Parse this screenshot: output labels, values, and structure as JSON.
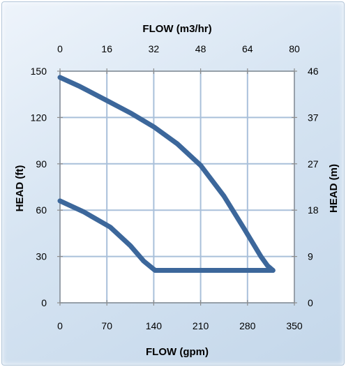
{
  "chart_data": {
    "type": "line",
    "xlabel_top": "FLOW (m3/hr)",
    "xlabel_bottom": "FLOW (gpm)",
    "ylabel_left": "HEAD (ft)",
    "ylabel_right": "HEAD (m)",
    "x_bottom_ticks": [
      "0",
      "70",
      "140",
      "210",
      "280",
      "350"
    ],
    "x_top_ticks": [
      "0",
      "16",
      "32",
      "48",
      "64",
      "80"
    ],
    "y_left_ticks": [
      "0",
      "30",
      "60",
      "90",
      "120",
      "150"
    ],
    "y_right_ticks": [
      "0",
      "9",
      "18",
      "27",
      "37",
      "46"
    ],
    "xlim": [
      0,
      350
    ],
    "ylim": [
      0,
      150
    ],
    "grid": true,
    "line_color": "#3c679b",
    "series": [
      {
        "points": [
          [
            0,
            146
          ],
          [
            30,
            140
          ],
          [
            70,
            131
          ],
          [
            105,
            123
          ],
          [
            140,
            114
          ],
          [
            175,
            103
          ],
          [
            210,
            89
          ],
          [
            245,
            69
          ],
          [
            275,
            48
          ],
          [
            300,
            30
          ],
          [
            310,
            24
          ],
          [
            318,
            21
          ]
        ]
      },
      {
        "points": [
          [
            0,
            66
          ],
          [
            35,
            59
          ],
          [
            75,
            49
          ],
          [
            105,
            37
          ],
          [
            125,
            27
          ],
          [
            142,
            21
          ],
          [
            210,
            21
          ],
          [
            280,
            21
          ],
          [
            318,
            21
          ]
        ]
      }
    ]
  }
}
